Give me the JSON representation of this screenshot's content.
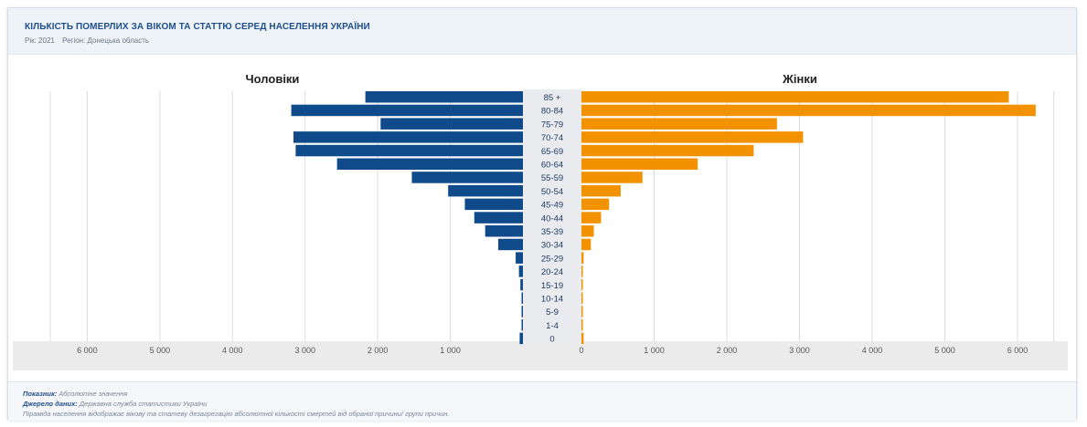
{
  "header": {
    "title": "КІЛЬКІСТЬ ПОМЕРЛИХ ЗА ВІКОМ ТА СТАТТЮ СЕРЕД НАСЕЛЕННЯ УКРАЇНИ",
    "year_text": "Рік: 2021",
    "region_text": "Регіон: Донецька область"
  },
  "colors": {
    "male": "#0f4a8a",
    "female": "#f29200",
    "label_band": "#e9ebee",
    "axis_band": "#ebebeb",
    "grid": "#dcdcdc"
  },
  "chart_data": {
    "type": "bar",
    "categories": [
      "85 +",
      "80-84",
      "75-79",
      "70-74",
      "65-69",
      "60-64",
      "55-59",
      "50-54",
      "45-49",
      "40-44",
      "35-39",
      "30-34",
      "25-29",
      "20-24",
      "15-19",
      "10-14",
      "5-9",
      "1-4",
      "0"
    ],
    "series": [
      {
        "name": "Чоловіки",
        "values": [
          2170,
          3190,
          1960,
          3160,
          3130,
          2560,
          1530,
          1030,
          800,
          670,
          520,
          340,
          100,
          55,
          35,
          15,
          10,
          10,
          45
        ]
      },
      {
        "name": "Жінки",
        "values": [
          5880,
          6250,
          2690,
          3050,
          2370,
          1600,
          840,
          540,
          380,
          270,
          170,
          130,
          30,
          15,
          8,
          5,
          3,
          3,
          30
        ]
      }
    ],
    "male_xlim": [
      0,
      7000
    ],
    "female_xlim": [
      0,
      6500
    ],
    "male_ticks": [
      6000,
      5000,
      4000,
      3000,
      2000,
      1000
    ],
    "female_ticks": [
      0,
      1000,
      2000,
      3000,
      4000,
      5000,
      6000
    ],
    "tick_labels_male": [
      "6 000",
      "5 000",
      "4 000",
      "3 000",
      "2 000",
      "1 000"
    ],
    "tick_labels_female": [
      "0",
      "1 000",
      "2 000",
      "3 000",
      "4 000",
      "5 000",
      "6 000"
    ],
    "grid": true
  },
  "footer": {
    "indicator_label": "Показник:",
    "indicator_value": "Абсолютне значення",
    "source_label": "Джерело даних:",
    "source_value": "Державна служба статистики України",
    "note": "Піраміда населення відображає вікову та статеву дезагрегацію абсолютної кількості смертей від обраної причини/ групи причин."
  }
}
